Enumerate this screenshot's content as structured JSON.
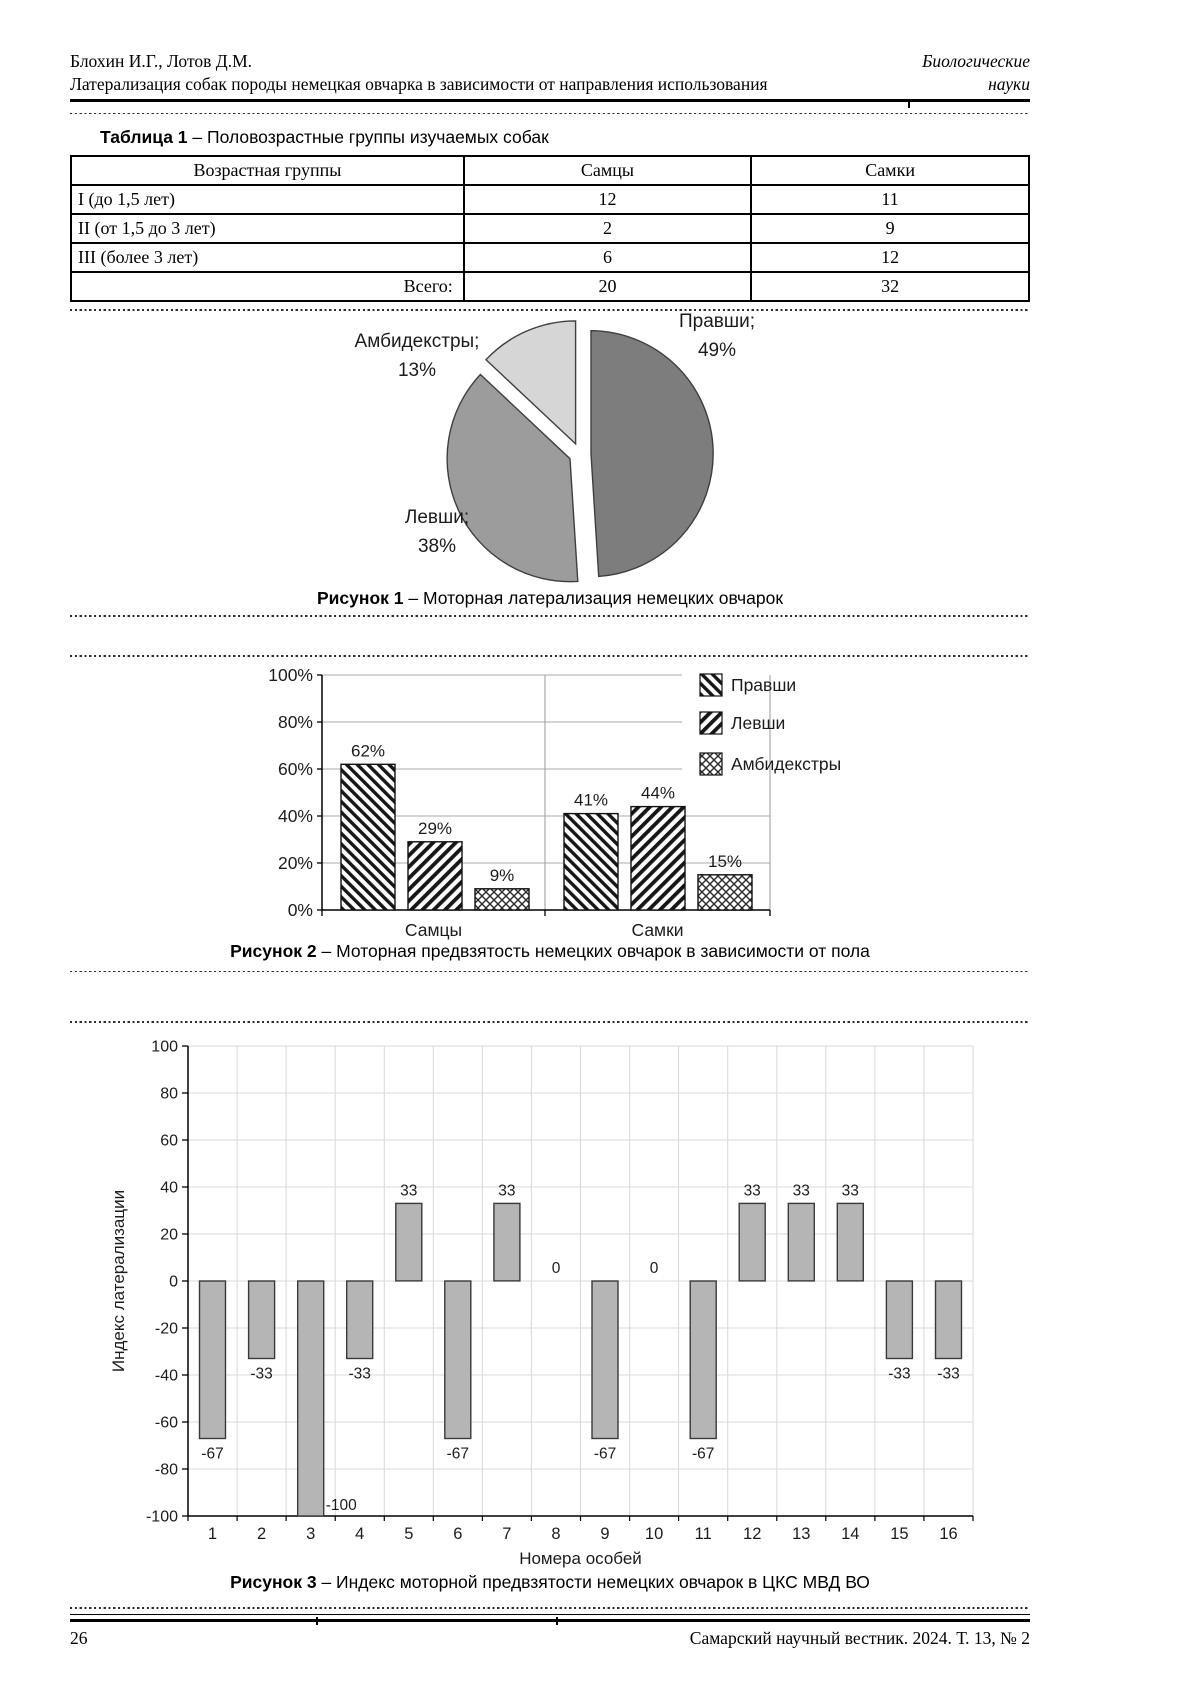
{
  "header": {
    "authors": "Блохин И.Г., Лотов Д.М.",
    "running_title": "Латерализация собак породы немецкая овчарка в зависимости от направления использования",
    "section_line1": "Биологические",
    "section_line2": "науки"
  },
  "table1": {
    "caption_label": "Таблица 1",
    "caption_text": "– Половозрастные группы изучаемых собак",
    "columns": [
      "Возрастная группы",
      "Самцы",
      "Самки"
    ],
    "rows": [
      [
        "I (до 1,5 лет)",
        "12",
        "11"
      ],
      [
        "II (от 1,5 до 3 лет)",
        "2",
        "9"
      ],
      [
        "III (более 3 лет)",
        "6",
        "12"
      ],
      [
        "Всего:",
        "20",
        "32"
      ]
    ]
  },
  "figure1": {
    "caption_label": "Рисунок 1",
    "caption_text": "– Моторная латерализация немецких овчарок"
  },
  "figure2": {
    "caption_label": "Рисунок 2",
    "caption_text": "– Моторная предвзятость немецких овчарок в зависимости от пола"
  },
  "figure3": {
    "caption_label": "Рисунок 3",
    "caption_text": "– Индекс моторной предвзятости немецких овчарок в ЦКС МВД ВО"
  },
  "footer": {
    "page_number": "26",
    "journal_ref": "Самарский научный вестник. 2024. Т. 13, № 2"
  },
  "chart_data": [
    {
      "id": "fig1",
      "type": "pie",
      "title": "Моторная латерализация немецких овчарок",
      "slices": [
        {
          "label": "Правши",
          "value": 49,
          "color": "#7d7d7d"
        },
        {
          "label": "Левши",
          "value": 38,
          "color": "#9c9c9c"
        },
        {
          "label": "Амбидекстры",
          "value": 13,
          "color": "#d6d6d6"
        }
      ],
      "start_angle_deg": 0,
      "exploded": true,
      "label_format": "{label}; {value}%"
    },
    {
      "id": "fig2",
      "type": "bar",
      "title": "Моторная предвзятость немецких овчарок в зависимости от пола",
      "categories": [
        "Самцы",
        "Самки"
      ],
      "series": [
        {
          "name": "Правши",
          "values": [
            62,
            41
          ],
          "hatch": "diagonal-forward"
        },
        {
          "name": "Левши",
          "values": [
            29,
            44
          ],
          "hatch": "diagonal-back"
        },
        {
          "name": "Амбидекстры",
          "values": [
            9,
            15
          ],
          "hatch": "diamond-cross"
        }
      ],
      "ylim": [
        0,
        100
      ],
      "ytick_labels": [
        "0%",
        "20%",
        "40%",
        "60%",
        "80%",
        "100%"
      ],
      "data_label_suffix": "%",
      "legend_position": "right",
      "grid": true
    },
    {
      "id": "fig3",
      "type": "bar",
      "title": "Индекс моторной предвзятости немецких овчарок в ЦКС МВД ВО",
      "categories": [
        "1",
        "2",
        "3",
        "4",
        "5",
        "6",
        "7",
        "8",
        "9",
        "10",
        "11",
        "12",
        "13",
        "14",
        "15",
        "16"
      ],
      "values": [
        -67,
        -33,
        -100,
        -33,
        33,
        -67,
        33,
        0,
        -67,
        0,
        -67,
        33,
        33,
        33,
        -33,
        -33
      ],
      "xlabel": "Номера особей",
      "ylabel": "Индекс латерализации",
      "ylim": [
        -100,
        100
      ],
      "ytick_step": 20,
      "bar_color": "#b5b5b5",
      "grid": true
    }
  ]
}
